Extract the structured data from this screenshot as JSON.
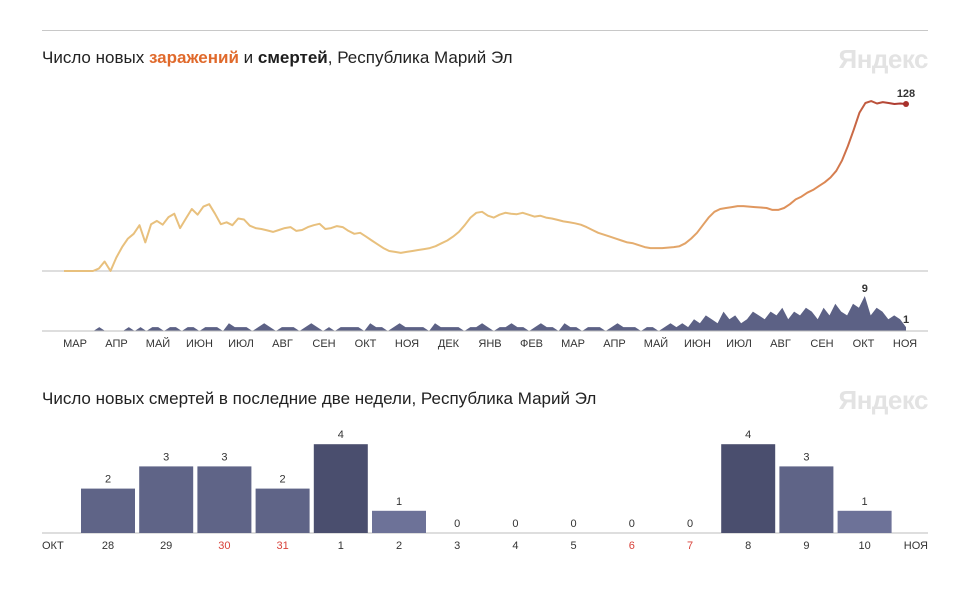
{
  "header": {
    "title_prefix": "Число новых ",
    "title_infections": "заражений",
    "title_and": " и ",
    "title_deaths": "смертей",
    "title_suffix": ", Республика Марий Эл",
    "logo": "Яндекс"
  },
  "bars_section": {
    "title": "Число новых смертей в последние две недели, Республика Марий Эл",
    "logo": "Яндекс"
  },
  "colors": {
    "infections_start": "#e8c07d",
    "infections_mid": "#dd8a55",
    "infections_end": "#a8312c",
    "deaths_area": "#5c6185",
    "bar_normal": "#5f6487",
    "bar_max": "#4a4e6e",
    "bar_light": "#6d7298",
    "weekend": "#d8423a"
  },
  "chart_data": [
    {
      "type": "line",
      "series": [
        {
          "values": [
            0,
            0,
            0,
            0,
            0,
            0,
            5,
            20,
            0,
            28,
            50,
            68,
            78,
            96,
            60,
            98,
            105,
            97,
            113,
            120,
            90,
            110,
            130,
            118,
            135,
            140,
            120,
            98,
            102,
            96,
            110,
            108,
            95,
            90,
            88,
            85,
            82,
            86,
            90,
            92,
            84,
            86,
            92,
            96,
            99,
            88,
            90,
            94,
            92,
            84,
            78,
            80,
            72,
            64,
            56,
            48,
            42,
            40,
            38,
            40,
            42,
            44,
            46,
            48,
            52,
            58,
            64,
            72,
            82,
            96,
            112,
            122,
            124,
            116,
            112,
            118,
            122,
            120,
            119,
            122,
            118,
            114,
            116,
            112,
            110,
            107,
            104,
            102,
            100,
            97,
            92,
            86,
            80,
            76,
            72,
            68,
            64,
            60,
            58,
            54,
            50,
            48,
            48,
            48,
            49,
            50,
            52,
            58,
            68,
            80,
            96,
            112,
            124,
            130,
            132,
            134,
            136,
            136,
            135,
            134,
            133,
            132,
            128,
            128,
            132,
            140,
            150,
            156,
            164,
            170,
            178,
            186,
            196,
            210,
            232,
            262,
            296,
            332,
            352,
            356,
            351,
            354,
            352,
            350,
            351,
            350
          ]
        }
      ]
    },
    {
      "type": "area",
      "series": [
        {
          "values": [
            0,
            0,
            0,
            0,
            0,
            0,
            1,
            0,
            0,
            0,
            0,
            1,
            0,
            1,
            0,
            1,
            1,
            0,
            1,
            1,
            0,
            1,
            1,
            0,
            1,
            1,
            1,
            0,
            2,
            1,
            1,
            1,
            0,
            1,
            2,
            1,
            0,
            1,
            1,
            1,
            0,
            1,
            2,
            1,
            0,
            1,
            0,
            1,
            1,
            1,
            1,
            0,
            2,
            1,
            1,
            0,
            1,
            2,
            1,
            1,
            1,
            1,
            0,
            2,
            1,
            1,
            1,
            1,
            0,
            1,
            1,
            2,
            1,
            0,
            1,
            1,
            2,
            1,
            1,
            0,
            1,
            2,
            1,
            1,
            0,
            2,
            1,
            1,
            0,
            1,
            1,
            1,
            0,
            1,
            2,
            1,
            1,
            1,
            0,
            1,
            1,
            0,
            1,
            2,
            1,
            2,
            1,
            3,
            2,
            4,
            3,
            2,
            5,
            3,
            4,
            2,
            3,
            5,
            4,
            3,
            5,
            4,
            6,
            3,
            5,
            4,
            6,
            5,
            3,
            6,
            4,
            7,
            5,
            4,
            7,
            6,
            9,
            4,
            6,
            5,
            3,
            4,
            3,
            1
          ]
        }
      ],
      "annotations": [
        "128",
        "9",
        "1"
      ],
      "x_ticks": [
        "МАР",
        "АПР",
        "МАЙ",
        "ИЮН",
        "ИЮЛ",
        "АВГ",
        "СЕН",
        "ОКТ",
        "НОЯ",
        "ДЕК",
        "ЯНВ",
        "ФЕВ",
        "МАР",
        "АПР",
        "МАЙ",
        "ИЮН",
        "ИЮЛ",
        "АВГ",
        "СЕН",
        "ОКТ",
        "НОЯ"
      ]
    },
    {
      "type": "bar",
      "categories": [
        "28",
        "29",
        "30",
        "31",
        "1",
        "2",
        "3",
        "4",
        "5",
        "6",
        "7",
        "8",
        "9",
        "10"
      ],
      "values": [
        2,
        3,
        3,
        2,
        4,
        1,
        0,
        0,
        0,
        0,
        0,
        4,
        3,
        1
      ],
      "weekend": [
        false,
        false,
        true,
        true,
        false,
        false,
        false,
        false,
        false,
        true,
        true,
        false,
        false,
        false
      ],
      "x_start_label": "ОКТ",
      "x_end_label": "НОЯ"
    }
  ]
}
